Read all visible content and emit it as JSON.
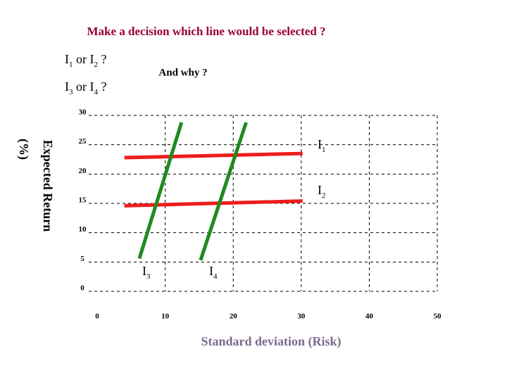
{
  "chart_data": {
    "type": "line",
    "title": "Make a decision which line would be selected ?",
    "questions": [
      {
        "parts": [
          "I",
          "1",
          " or I",
          "2",
          " ?"
        ]
      },
      {
        "parts": [
          "I",
          "3",
          " or I",
          "4",
          " ?"
        ]
      }
    ],
    "note": "And why ?",
    "x_label": "Standard deviation (Risk)",
    "y_label": "Expected Return",
    "y_unit": "(%)",
    "xlim": [
      0,
      50
    ],
    "xticks": [
      0,
      10,
      20,
      30,
      40,
      50
    ],
    "ylim": [
      0,
      30
    ],
    "yticks": [
      0,
      5,
      10,
      15,
      20,
      25,
      30
    ],
    "grid": true,
    "series": [
      {
        "label": "I",
        "sub": "1",
        "color": "#ee1c1c",
        "x": [
          4,
          30.2
        ],
        "values": [
          22.8,
          23.5
        ]
      },
      {
        "label": "I",
        "sub": "2",
        "color": "#ee1c1c",
        "x": [
          4,
          30.2
        ],
        "values": [
          14.6,
          15.4
        ]
      },
      {
        "label": "I",
        "sub": "3",
        "color": "#1f8a1f",
        "x": [
          6.2,
          12.4
        ],
        "values": [
          5.6,
          28.8
        ]
      },
      {
        "label": "I",
        "sub": "4",
        "color": "#1f8a1f",
        "x": [
          15.2,
          21.9
        ],
        "values": [
          5.3,
          28.8
        ]
      }
    ]
  }
}
